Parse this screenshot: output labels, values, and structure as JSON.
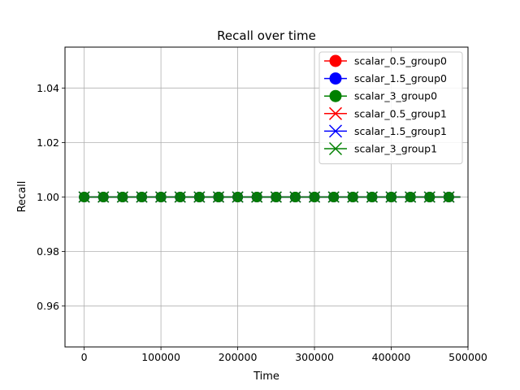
{
  "chart_data": {
    "type": "line",
    "title": "Recall over time",
    "xlabel": "Time",
    "ylabel": "Recall",
    "xlim": [
      -25000,
      500000
    ],
    "ylim": [
      0.945,
      1.055
    ],
    "xticks": [
      0,
      100000,
      200000,
      300000,
      400000,
      500000
    ],
    "yticks": [
      0.96,
      0.98,
      1.0,
      1.02,
      1.04
    ],
    "ytick_labels": [
      "0.96",
      "0.98",
      "1.00",
      "1.02",
      "1.04"
    ],
    "grid": true,
    "legend_position": "top-right",
    "x": [
      0,
      25000,
      50000,
      75000,
      100000,
      125000,
      150000,
      175000,
      200000,
      225000,
      250000,
      275000,
      300000,
      325000,
      350000,
      375000,
      400000,
      425000,
      450000,
      475000
    ],
    "line_end_x": 490000,
    "series": [
      {
        "name": "scalar_0.5_group0",
        "color": "#ff0000",
        "marker": "circle",
        "value": 1.0
      },
      {
        "name": "scalar_1.5_group0",
        "color": "#0000ff",
        "marker": "circle",
        "value": 1.0
      },
      {
        "name": "scalar_3_group0",
        "color": "#008000",
        "marker": "circle",
        "value": 1.0
      },
      {
        "name": "scalar_0.5_group1",
        "color": "#ff0000",
        "marker": "x",
        "value": 1.0
      },
      {
        "name": "scalar_1.5_group1",
        "color": "#0000ff",
        "marker": "x",
        "value": 1.0
      },
      {
        "name": "scalar_3_group1",
        "color": "#008000",
        "marker": "x",
        "value": 1.0
      }
    ]
  }
}
